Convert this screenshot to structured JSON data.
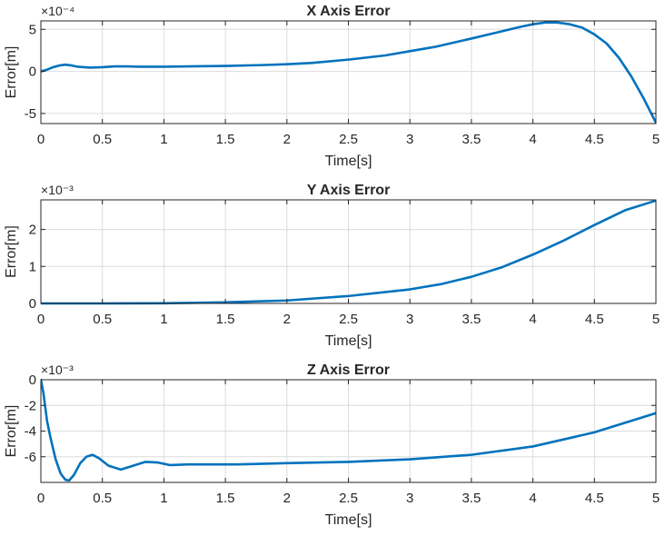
{
  "figure": {
    "background": "#ffffff",
    "grid": true
  },
  "chart_data": [
    {
      "type": "line",
      "title": "X Axis Error",
      "xlabel": "Time[s]",
      "ylabel": "Error[m]",
      "exponent_label": "×10⁻⁴",
      "xlim": [
        0,
        5
      ],
      "ylim": [
        -6.2,
        6
      ],
      "xticks": [
        0,
        0.5,
        1,
        1.5,
        2,
        2.5,
        3,
        3.5,
        4,
        4.5,
        5
      ],
      "xtick_labels": [
        "0",
        "0.5",
        "1",
        "1.5",
        "2",
        "2.5",
        "3",
        "3.5",
        "4",
        "4.5",
        "5"
      ],
      "yticks": [
        -5,
        0,
        5
      ],
      "ytick_labels": [
        "-5",
        "0",
        "5"
      ],
      "series": [
        {
          "color": "#0072bd",
          "x": [
            0,
            0.05,
            0.1,
            0.15,
            0.2,
            0.25,
            0.3,
            0.4,
            0.5,
            0.6,
            0.7,
            0.8,
            1.0,
            1.2,
            1.5,
            1.8,
            2.0,
            2.2,
            2.5,
            2.8,
            3.0,
            3.2,
            3.5,
            3.7,
            3.9,
            4.0,
            4.1,
            4.2,
            4.3,
            4.4,
            4.5,
            4.6,
            4.7,
            4.8,
            4.9,
            5.0
          ],
          "y": [
            0.0,
            0.2,
            0.5,
            0.7,
            0.8,
            0.7,
            0.55,
            0.45,
            0.5,
            0.6,
            0.6,
            0.55,
            0.55,
            0.6,
            0.65,
            0.75,
            0.85,
            1.0,
            1.4,
            1.9,
            2.4,
            2.9,
            3.9,
            4.6,
            5.3,
            5.6,
            5.8,
            5.8,
            5.6,
            5.2,
            4.4,
            3.3,
            1.6,
            -0.6,
            -3.2,
            -6.1
          ]
        }
      ]
    },
    {
      "type": "line",
      "title": "Y Axis Error",
      "xlabel": "Time[s]",
      "ylabel": "Error[m]",
      "exponent_label": "×10⁻³",
      "xlim": [
        0,
        5
      ],
      "ylim": [
        0,
        2.8
      ],
      "xticks": [
        0,
        0.5,
        1,
        1.5,
        2,
        2.5,
        3,
        3.5,
        4,
        4.5,
        5
      ],
      "xtick_labels": [
        "0",
        "0.5",
        "1",
        "1.5",
        "2",
        "2.5",
        "3",
        "3.5",
        "4",
        "4.5",
        "5"
      ],
      "yticks": [
        0,
        1,
        2
      ],
      "ytick_labels": [
        "0",
        "1",
        "2"
      ],
      "series": [
        {
          "color": "#0072bd",
          "x": [
            0,
            0.5,
            1.0,
            1.5,
            2.0,
            2.5,
            3.0,
            3.25,
            3.5,
            3.75,
            4.0,
            4.25,
            4.5,
            4.75,
            5.0
          ],
          "y": [
            0.0,
            0.0,
            0.005,
            0.03,
            0.08,
            0.2,
            0.38,
            0.52,
            0.72,
            0.98,
            1.32,
            1.7,
            2.12,
            2.52,
            2.78
          ]
        }
      ]
    },
    {
      "type": "line",
      "title": "Z Axis Error",
      "xlabel": "Time[s]",
      "ylabel": "Error[m]",
      "exponent_label": "×10⁻³",
      "xlim": [
        0,
        5
      ],
      "ylim": [
        -8,
        0
      ],
      "xticks": [
        0,
        0.5,
        1,
        1.5,
        2,
        2.5,
        3,
        3.5,
        4,
        4.5,
        5
      ],
      "xtick_labels": [
        "0",
        "0.5",
        "1",
        "1.5",
        "2",
        "2.5",
        "3",
        "3.5",
        "4",
        "4.5",
        "5"
      ],
      "yticks": [
        -6,
        -4,
        -2,
        0
      ],
      "ytick_labels": [
        "-6",
        "-4",
        "-2",
        "0"
      ],
      "series": [
        {
          "color": "#0072bd",
          "x": [
            0,
            0.02,
            0.05,
            0.08,
            0.12,
            0.16,
            0.2,
            0.23,
            0.27,
            0.32,
            0.37,
            0.42,
            0.47,
            0.55,
            0.65,
            0.75,
            0.85,
            0.95,
            1.05,
            1.2,
            1.4,
            1.6,
            2.0,
            2.5,
            3.0,
            3.5,
            4.0,
            4.5,
            5.0
          ],
          "y": [
            0.0,
            -1.0,
            -3.2,
            -4.6,
            -6.2,
            -7.3,
            -7.8,
            -7.85,
            -7.4,
            -6.5,
            -6.0,
            -5.85,
            -6.1,
            -6.7,
            -7.0,
            -6.7,
            -6.4,
            -6.45,
            -6.65,
            -6.6,
            -6.6,
            -6.6,
            -6.5,
            -6.4,
            -6.2,
            -5.85,
            -5.2,
            -4.1,
            -2.6
          ]
        }
      ]
    }
  ]
}
